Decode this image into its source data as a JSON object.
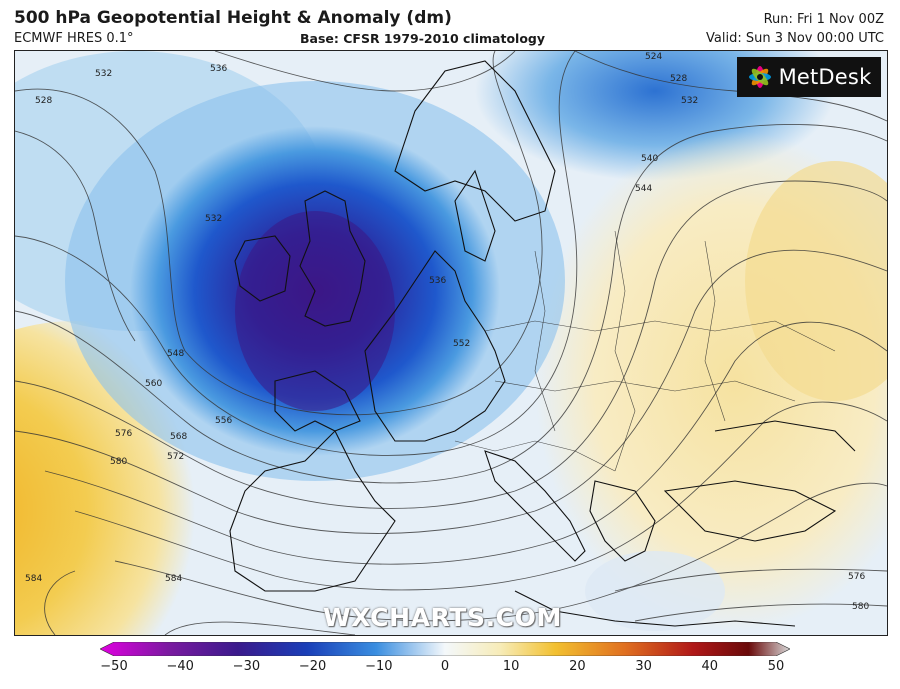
{
  "header": {
    "title": "500 hPa Geopotential Height & Anomaly (dm)",
    "model": "ECMWF HRES 0.1°",
    "base": "Base: CFSR 1979-2010 climatology",
    "run": "Run: Fri 1 Nov 00Z",
    "valid": "Valid: Sun 3 Nov 00:00 UTC"
  },
  "logo": {
    "text": "MetDesk",
    "icon": "metdesk-starburst-icon"
  },
  "watermark": "WXCHARTS.COM",
  "contour_labels": [
    "524",
    "528",
    "532",
    "536",
    "540",
    "544",
    "548",
    "552",
    "556",
    "560",
    "568",
    "572",
    "576",
    "580",
    "584"
  ],
  "colorbar": {
    "ticks": [
      "−50",
      "−40",
      "−30",
      "−20",
      "−10",
      "0",
      "10",
      "20",
      "30",
      "40",
      "50"
    ],
    "colors": [
      "#e000e0",
      "#5a0a8a",
      "#2a2aa0",
      "#1a4fc8",
      "#3a8ee0",
      "#cfe6f5",
      "#f5efc0",
      "#f2c030",
      "#e07020",
      "#b01818",
      "#7a1010",
      "#d8d8d8"
    ]
  },
  "map": {
    "region": "Europe and North Atlantic",
    "low_center": "British Isles",
    "colors": {
      "low_core": "#3a1a8c",
      "trough": "#1f4fc8",
      "ridge": "#f2c030",
      "neutral": "#e8f0f6"
    }
  }
}
